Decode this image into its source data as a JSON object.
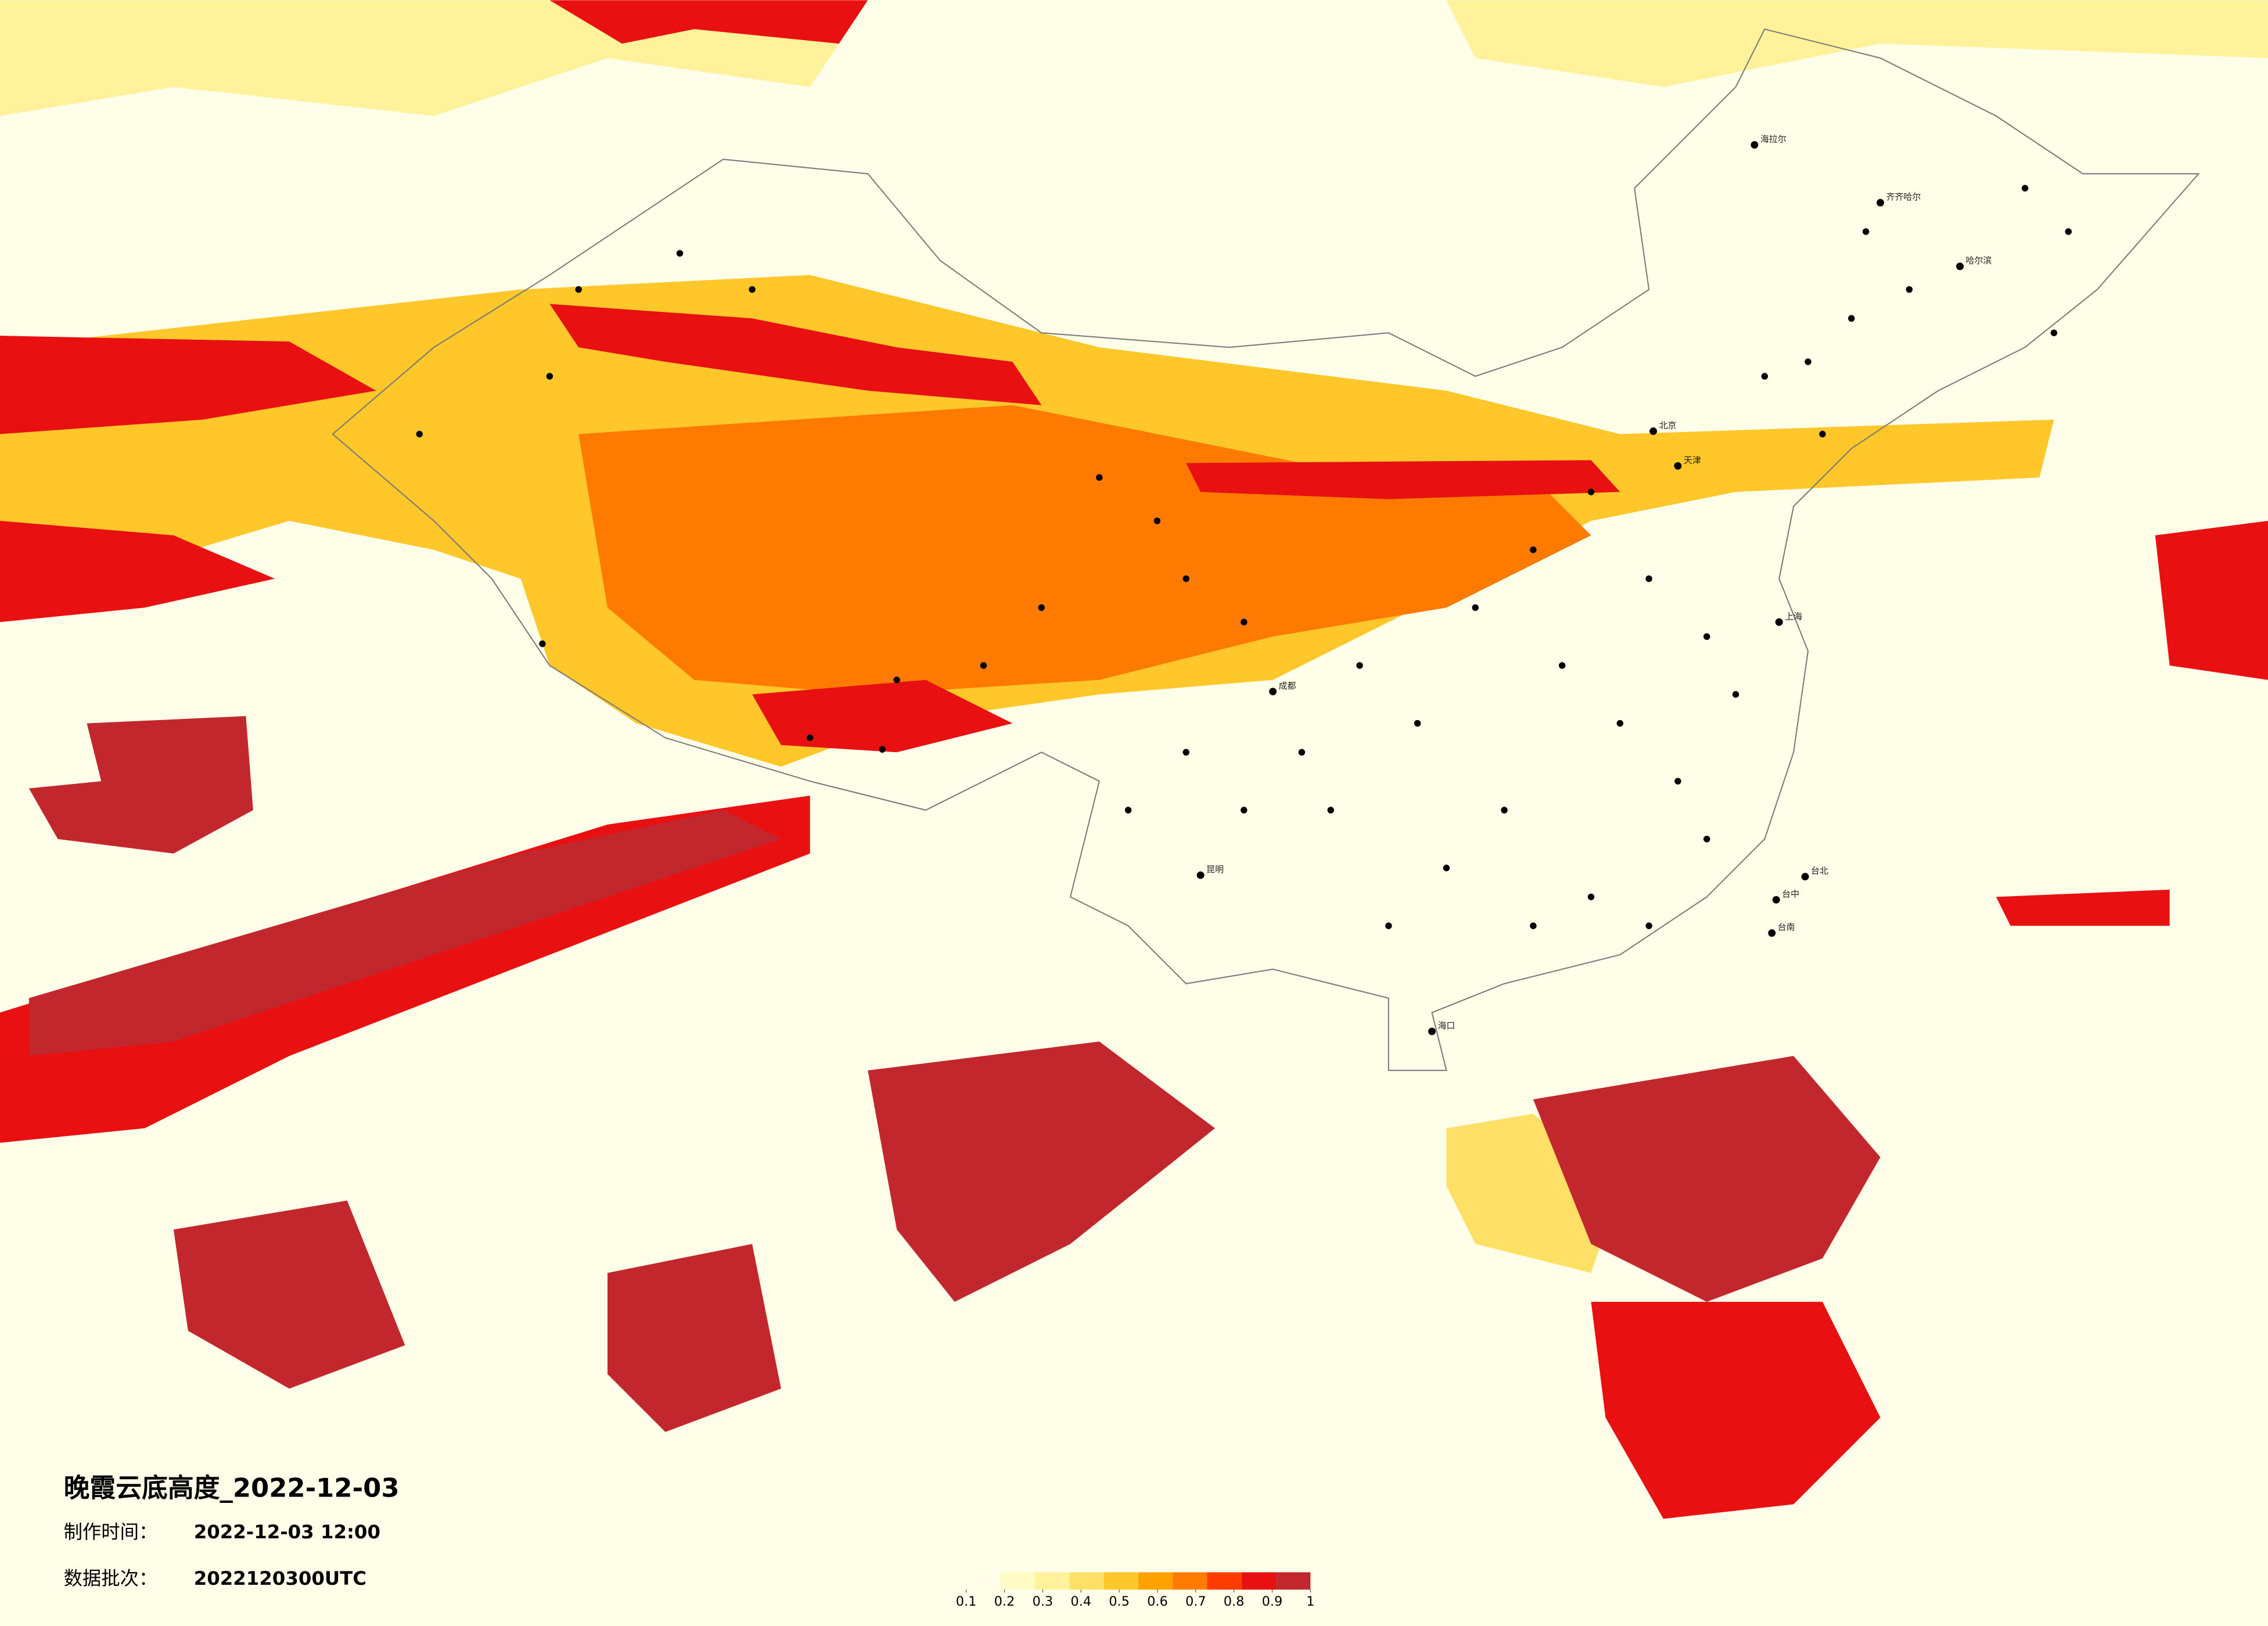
{
  "map": {
    "title": "晚霞云底高度_2022-12-03",
    "made_time_label": "制作时间：",
    "made_time": "2022-12-03 12:00",
    "batch_label": "数据批次：",
    "batch": "2022120300UTC",
    "colorbar": {
      "ticks": [
        0.1,
        0.2,
        0.3,
        0.4,
        0.5,
        0.6,
        0.7,
        0.8,
        0.9,
        1
      ],
      "colors": [
        "#fffde8",
        "#fffbc4",
        "#fff29a",
        "#ffe066",
        "#ffc72a",
        "#ffa200",
        "#ff7a00",
        "#ff3c00",
        "#e81010",
        "#c1272d"
      ]
    },
    "cities": [
      "北京",
      "天津",
      "上海",
      "哈尔滨",
      "齐齐哈尔",
      "海拉尔",
      "海口",
      "台北",
      "台中",
      "台南",
      "成都",
      "昆明"
    ]
  }
}
